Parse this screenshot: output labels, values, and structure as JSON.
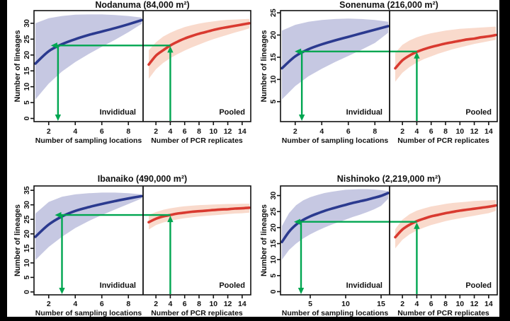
{
  "figure": {
    "colors": {
      "individual_line": "#2b3a8f",
      "individual_band": "#c6c8e2",
      "pooled_line": "#d93a30",
      "pooled_band": "#f9dacc",
      "annotation_green": "#00a651",
      "axis_black": "#111111"
    }
  },
  "chart_data": [
    {
      "type": "line",
      "title": "Nodanuma (84,000 m²)",
      "ylabel": "Number of lineages",
      "ylim": [
        -1,
        34
      ],
      "yticks": [
        0,
        5,
        10,
        15,
        20,
        25,
        30
      ],
      "grid": "off",
      "panels": [
        {
          "name": "Invididual",
          "xlabel": "Number of sampling locations",
          "xlim": [
            1,
            9
          ],
          "xticks": [
            2,
            4,
            6,
            8
          ],
          "x": [
            1,
            2,
            3,
            4,
            5,
            6,
            7,
            8,
            9
          ],
          "mean": [
            17.3,
            21.2,
            23.4,
            25.0,
            26.3,
            27.4,
            28.5,
            29.7,
            31.0
          ],
          "upper": [
            30.0,
            31.6,
            32.3,
            32.7,
            32.8,
            32.8,
            32.6,
            32.3,
            31.8
          ],
          "lower": [
            6.0,
            11.0,
            14.8,
            17.8,
            20.3,
            22.6,
            24.8,
            27.2,
            29.8
          ]
        },
        {
          "name": "Pooled",
          "xlabel": "Number of PCR replicates",
          "xlim": [
            1,
            15
          ],
          "xticks": [
            2,
            4,
            6,
            8,
            10,
            12,
            14
          ],
          "x": [
            1,
            2,
            3,
            4,
            5,
            6,
            7,
            8,
            9,
            10,
            11,
            12,
            13,
            14,
            15
          ],
          "mean": [
            17.0,
            19.8,
            21.5,
            23.0,
            24.2,
            25.2,
            26.0,
            26.7,
            27.3,
            27.9,
            28.4,
            28.8,
            29.2,
            29.6,
            30.0
          ],
          "upper": [
            21.5,
            24.0,
            25.8,
            27.0,
            28.0,
            28.8,
            29.4,
            29.9,
            30.3,
            30.6,
            30.9,
            31.1,
            31.2,
            31.3,
            31.4
          ],
          "lower": [
            12.5,
            15.5,
            17.5,
            19.0,
            20.3,
            21.4,
            22.4,
            23.3,
            24.2,
            25.0,
            25.7,
            26.4,
            27.1,
            27.7,
            28.4
          ]
        }
      ],
      "annotation": {
        "y": 23.0,
        "individual_x": 2.7,
        "pooled_x": 4
      }
    },
    {
      "type": "line",
      "title": "Sonenuma (216,000 m²)",
      "ylabel": "Number of lineages",
      "ylim": [
        0.5,
        25.5
      ],
      "yticks": [
        5,
        10,
        15,
        20,
        25
      ],
      "grid": "off",
      "panels": [
        {
          "name": "Invididual",
          "xlabel": "Number of sampling locations",
          "xlim": [
            1,
            9
          ],
          "xticks": [
            2,
            4,
            6,
            8
          ],
          "x": [
            1,
            2,
            3,
            4,
            5,
            6,
            7,
            8,
            9
          ],
          "mean": [
            12.5,
            15.2,
            16.8,
            17.9,
            18.8,
            19.6,
            20.4,
            21.2,
            22.0
          ],
          "upper": [
            21.0,
            22.3,
            23.0,
            23.4,
            23.6,
            23.7,
            23.6,
            23.4,
            23.0
          ],
          "lower": [
            5.5,
            8.5,
            10.7,
            12.4,
            13.9,
            15.3,
            16.7,
            18.2,
            20.5
          ]
        },
        {
          "name": "Pooled",
          "xlabel": "Number of PCR replicates",
          "xlim": [
            1,
            15
          ],
          "xticks": [
            2,
            4,
            6,
            8,
            10,
            12,
            14
          ],
          "x": [
            1,
            2,
            3,
            4,
            5,
            6,
            7,
            8,
            9,
            10,
            11,
            12,
            13,
            14,
            15
          ],
          "mean": [
            12.5,
            14.3,
            15.4,
            16.2,
            16.8,
            17.3,
            17.7,
            18.1,
            18.4,
            18.7,
            19.0,
            19.2,
            19.5,
            19.7,
            20.0
          ],
          "upper": [
            16.0,
            17.8,
            18.8,
            19.5,
            20.0,
            20.4,
            20.7,
            21.0,
            21.2,
            21.4,
            21.5,
            21.6,
            21.7,
            21.8,
            21.9
          ],
          "lower": [
            9.5,
            11.5,
            12.8,
            13.8,
            14.6,
            15.2,
            15.8,
            16.3,
            16.8,
            17.2,
            17.6,
            18.0,
            18.3,
            18.6,
            18.9
          ]
        }
      ],
      "annotation": {
        "y": 16.3,
        "individual_x": 2.5,
        "pooled_x": 4
      }
    },
    {
      "type": "line",
      "title": "Ibanaiko (490,000 m²)",
      "ylabel": "Number of lineages",
      "ylim": [
        -1,
        36.5
      ],
      "yticks": [
        0,
        5,
        10,
        15,
        20,
        25,
        30,
        35
      ],
      "grid": "off",
      "panels": [
        {
          "name": "Invididual",
          "xlabel": "Number of sampling locations",
          "xlim": [
            1,
            9
          ],
          "xticks": [
            2,
            4,
            6,
            8
          ],
          "x": [
            1,
            2,
            3,
            4,
            5,
            6,
            7,
            8,
            9
          ],
          "mean": [
            19.0,
            23.2,
            26.0,
            27.9,
            29.2,
            30.3,
            31.3,
            32.2,
            33.0
          ],
          "upper": [
            27.0,
            31.0,
            32.8,
            33.6,
            34.0,
            34.2,
            34.2,
            34.0,
            33.6
          ],
          "lower": [
            11.0,
            15.5,
            19.0,
            22.0,
            24.4,
            26.5,
            28.4,
            30.3,
            32.2
          ]
        },
        {
          "name": "Pooled",
          "xlabel": "Number of PCR replicates",
          "xlim": [
            1,
            15
          ],
          "xticks": [
            2,
            4,
            6,
            8,
            10,
            12,
            14
          ],
          "x": [
            1,
            2,
            3,
            4,
            5,
            6,
            7,
            8,
            9,
            10,
            11,
            12,
            13,
            14,
            15
          ],
          "mean": [
            24.0,
            25.2,
            26.0,
            26.5,
            27.0,
            27.3,
            27.6,
            27.8,
            28.0,
            28.2,
            28.4,
            28.5,
            28.7,
            28.8,
            29.0
          ],
          "upper": [
            26.5,
            27.5,
            28.3,
            28.8,
            29.2,
            29.5,
            29.7,
            29.9,
            30.0,
            30.1,
            30.2,
            30.3,
            30.3,
            30.4,
            30.4
          ],
          "lower": [
            21.5,
            23.0,
            23.9,
            24.5,
            25.0,
            25.4,
            25.7,
            26.0,
            26.2,
            26.4,
            26.6,
            26.8,
            27.0,
            27.1,
            27.3
          ]
        }
      ],
      "annotation": {
        "y": 26.5,
        "individual_x": 3.0,
        "pooled_x": 4
      }
    },
    {
      "type": "line",
      "title": "Nishinoko (2,219,000 m²)",
      "ylabel": "Number of lineages",
      "ylim": [
        -1,
        33
      ],
      "yticks": [
        0,
        5,
        10,
        15,
        20,
        25,
        30
      ],
      "grid": "off",
      "panels": [
        {
          "name": "Invididual",
          "xlabel": "Number of sampling locations",
          "xlim": [
            1,
            16
          ],
          "xticks": [
            5,
            10,
            15
          ],
          "x": [
            1,
            2,
            3,
            4,
            5,
            6,
            7,
            8,
            9,
            10,
            11,
            12,
            13,
            14,
            15,
            16
          ],
          "mean": [
            15.5,
            18.7,
            20.9,
            22.4,
            23.5,
            24.4,
            25.2,
            25.9,
            26.5,
            27.1,
            27.7,
            28.2,
            28.7,
            29.3,
            29.9,
            30.8
          ],
          "upper": [
            20.5,
            24.5,
            27.0,
            28.5,
            29.5,
            30.2,
            30.8,
            31.2,
            31.5,
            31.8,
            31.9,
            32.0,
            32.0,
            31.9,
            31.7,
            31.4
          ],
          "lower": [
            10.0,
            13.0,
            15.0,
            16.6,
            17.9,
            19.0,
            20.0,
            20.9,
            21.7,
            22.5,
            23.3,
            24.0,
            24.8,
            25.7,
            26.8,
            29.0
          ]
        },
        {
          "name": "Pooled",
          "xlabel": "Number of PCR replicates",
          "xlim": [
            1,
            15
          ],
          "xticks": [
            2,
            4,
            6,
            8,
            10,
            12,
            14
          ],
          "x": [
            1,
            2,
            3,
            4,
            5,
            6,
            7,
            8,
            9,
            10,
            11,
            12,
            13,
            14,
            15
          ],
          "mean": [
            17.0,
            19.4,
            20.9,
            22.0,
            22.8,
            23.5,
            24.0,
            24.5,
            24.9,
            25.3,
            25.6,
            25.9,
            26.2,
            26.5,
            26.9
          ],
          "upper": [
            19.5,
            22.5,
            24.2,
            25.3,
            26.0,
            26.6,
            27.0,
            27.4,
            27.7,
            27.9,
            28.1,
            28.3,
            28.4,
            28.5,
            28.6
          ],
          "lower": [
            13.5,
            16.2,
            17.9,
            19.1,
            20.0,
            20.8,
            21.4,
            22.0,
            22.5,
            22.9,
            23.3,
            23.7,
            24.1,
            24.5,
            25.2
          ]
        }
      ],
      "annotation": {
        "y": 21.8,
        "individual_x": 3.7,
        "pooled_x": 4
      }
    }
  ]
}
